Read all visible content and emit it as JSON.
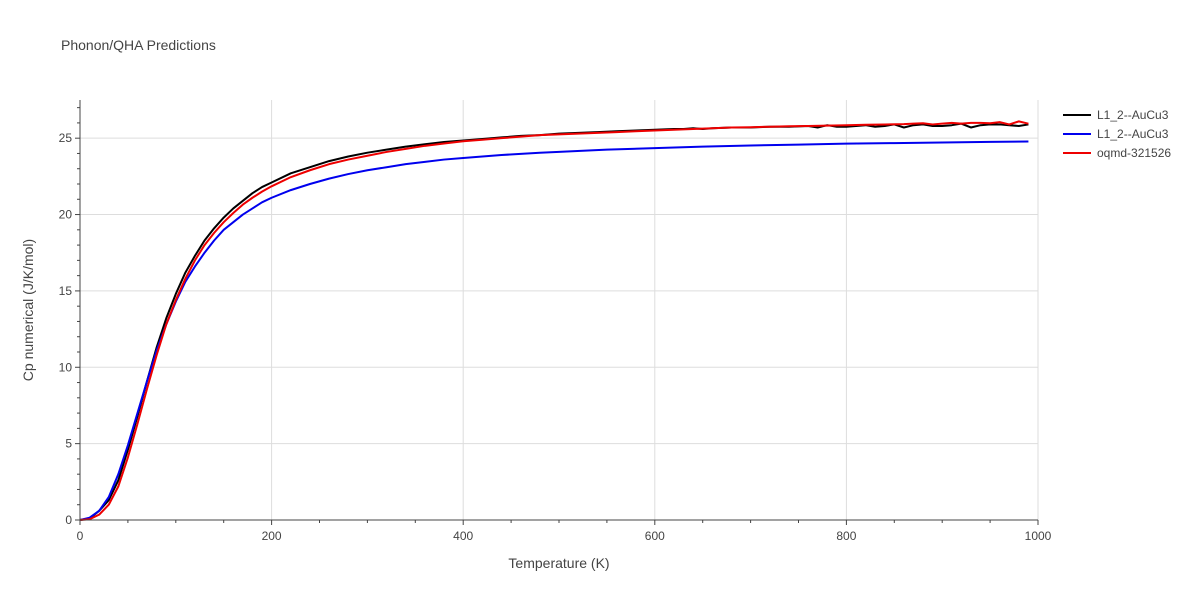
{
  "chart_data": {
    "type": "line",
    "title": "Phonon/QHA Predictions",
    "xlabel": "Temperature (K)",
    "ylabel": "Cp numerical (J/K/mol)",
    "xlim": [
      0,
      1000
    ],
    "ylim": [
      0,
      27.5
    ],
    "x_ticks": [
      0,
      200,
      400,
      600,
      800,
      1000
    ],
    "y_ticks": [
      0,
      5,
      10,
      15,
      20,
      25
    ],
    "grid": true,
    "legend_position": "top-right",
    "series": [
      {
        "name": "L1_2--AuCu3",
        "color": "#000000",
        "x": [
          0,
          10,
          20,
          30,
          40,
          50,
          60,
          70,
          80,
          90,
          100,
          110,
          120,
          130,
          140,
          150,
          160,
          170,
          180,
          190,
          200,
          220,
          240,
          260,
          280,
          300,
          320,
          340,
          360,
          380,
          400,
          420,
          440,
          460,
          480,
          500,
          520,
          540,
          560,
          580,
          600,
          620,
          630,
          640,
          650,
          660,
          680,
          700,
          720,
          740,
          760,
          770,
          780,
          790,
          800,
          810,
          820,
          830,
          840,
          850,
          860,
          870,
          880,
          890,
          900,
          910,
          920,
          930,
          940,
          950,
          960,
          970,
          980,
          990
        ],
        "y": [
          0,
          0.1,
          0.6,
          1.3,
          2.6,
          4.6,
          6.8,
          9.1,
          11.3,
          13.2,
          14.8,
          16.2,
          17.3,
          18.3,
          19.1,
          19.8,
          20.4,
          20.9,
          21.4,
          21.8,
          22.1,
          22.7,
          23.1,
          23.5,
          23.8,
          24.05,
          24.25,
          24.45,
          24.6,
          24.75,
          24.85,
          24.95,
          25.05,
          25.15,
          25.2,
          25.3,
          25.35,
          25.4,
          25.45,
          25.5,
          25.55,
          25.6,
          25.6,
          25.65,
          25.6,
          25.65,
          25.7,
          25.7,
          25.75,
          25.75,
          25.8,
          25.7,
          25.85,
          25.75,
          25.75,
          25.8,
          25.85,
          25.75,
          25.8,
          25.9,
          25.7,
          25.85,
          25.9,
          25.8,
          25.8,
          25.85,
          25.95,
          25.7,
          25.85,
          25.9,
          25.9,
          25.85,
          25.8,
          25.9
        ]
      },
      {
        "name": "L1_2--AuCu3",
        "color": "#0000ee",
        "x": [
          0,
          10,
          20,
          30,
          40,
          50,
          60,
          70,
          80,
          90,
          100,
          110,
          120,
          130,
          140,
          150,
          160,
          170,
          180,
          190,
          200,
          220,
          240,
          260,
          280,
          300,
          320,
          340,
          360,
          380,
          400,
          420,
          440,
          460,
          480,
          500,
          550,
          600,
          650,
          700,
          750,
          800,
          850,
          900,
          950,
          990
        ],
        "y": [
          0,
          0.15,
          0.6,
          1.5,
          3.0,
          4.9,
          7.0,
          9.1,
          11.1,
          12.8,
          14.3,
          15.6,
          16.6,
          17.5,
          18.3,
          19.0,
          19.5,
          20.0,
          20.4,
          20.8,
          21.1,
          21.6,
          22.0,
          22.35,
          22.65,
          22.9,
          23.1,
          23.3,
          23.45,
          23.6,
          23.7,
          23.8,
          23.9,
          23.97,
          24.05,
          24.1,
          24.25,
          24.35,
          24.45,
          24.52,
          24.58,
          24.64,
          24.68,
          24.72,
          24.76,
          24.78
        ]
      },
      {
        "name": "oqmd-321526",
        "color": "#ee0000",
        "x": [
          0,
          10,
          20,
          30,
          40,
          50,
          60,
          70,
          80,
          90,
          100,
          110,
          120,
          130,
          140,
          150,
          160,
          170,
          180,
          190,
          200,
          220,
          240,
          260,
          280,
          300,
          320,
          340,
          360,
          380,
          400,
          420,
          440,
          460,
          480,
          500,
          520,
          540,
          560,
          580,
          600,
          620,
          640,
          660,
          680,
          700,
          720,
          740,
          760,
          780,
          800,
          820,
          840,
          860,
          870,
          880,
          890,
          900,
          910,
          920,
          930,
          940,
          950,
          960,
          970,
          980,
          990
        ],
        "y": [
          0,
          0.05,
          0.35,
          1.0,
          2.2,
          4.1,
          6.3,
          8.6,
          10.8,
          12.8,
          14.4,
          15.8,
          17.0,
          18.0,
          18.8,
          19.5,
          20.1,
          20.65,
          21.1,
          21.5,
          21.85,
          22.45,
          22.9,
          23.3,
          23.6,
          23.85,
          24.1,
          24.3,
          24.5,
          24.65,
          24.8,
          24.9,
          25.0,
          25.1,
          25.2,
          25.25,
          25.3,
          25.35,
          25.4,
          25.45,
          25.5,
          25.55,
          25.6,
          25.65,
          25.7,
          25.72,
          25.75,
          25.78,
          25.8,
          25.82,
          25.85,
          25.88,
          25.9,
          25.92,
          25.95,
          25.98,
          25.9,
          25.95,
          26.0,
          25.95,
          26.0,
          26.0,
          25.98,
          26.05,
          25.9,
          26.1,
          25.95
        ]
      }
    ]
  }
}
